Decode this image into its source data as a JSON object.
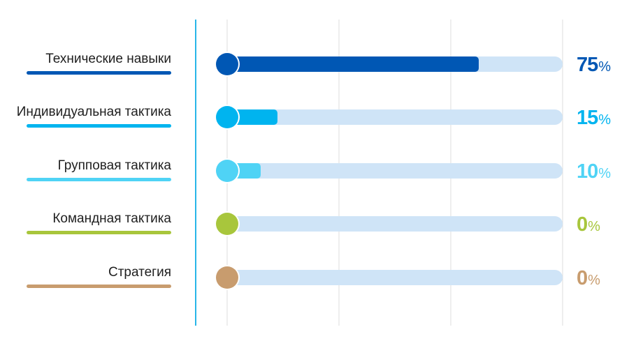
{
  "chart_data": {
    "type": "bar",
    "orientation": "horizontal",
    "xlim": [
      0,
      100
    ],
    "grid": true,
    "categories": [
      "Технические навыки",
      "Индивидуальная тактика",
      "Групповая тактика",
      "Командная тактика",
      "Стратегия"
    ],
    "values": [
      75,
      15,
      10,
      0,
      0
    ],
    "value_labels": [
      "75",
      "15",
      "10",
      "0",
      "0"
    ],
    "unit": "%",
    "colors": [
      "#0057b4",
      "#00b4ef",
      "#4fd3f5",
      "#a8c63c",
      "#c89c6e"
    ],
    "track_color": "#cfe4f7",
    "gridline_color": "#dcdcdc",
    "axis_color": "#29b6e8"
  }
}
